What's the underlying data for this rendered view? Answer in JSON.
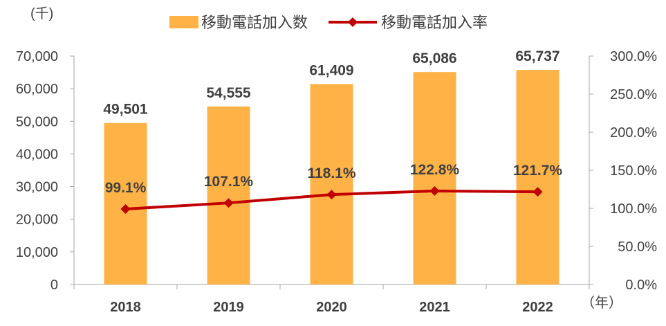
{
  "chart_data": {
    "type": "bar",
    "categories": [
      "2018",
      "2019",
      "2020",
      "2021",
      "2022"
    ],
    "series": [
      {
        "name": "移動電話加入数",
        "type": "bar",
        "axis": "left",
        "values": [
          49501,
          54555,
          61409,
          65086,
          65737
        ],
        "labels": [
          "49,501",
          "54,555",
          "61,409",
          "65,086",
          "65,737"
        ],
        "color": "#FFB347"
      },
      {
        "name": "移動電話加入率",
        "type": "line",
        "axis": "right",
        "marker": "diamond",
        "values": [
          99.1,
          107.1,
          118.1,
          122.8,
          121.7
        ],
        "labels": [
          "99.1%",
          "107.1%",
          "118.1%",
          "122.8%",
          "121.7%"
        ],
        "color": "#C00000"
      }
    ],
    "y_left": {
      "unit_label": "(千)",
      "ylim": [
        0,
        70000
      ],
      "ticks": [
        0,
        10000,
        20000,
        30000,
        40000,
        50000,
        60000,
        70000
      ],
      "tick_labels": [
        "0",
        "10,000",
        "20,000",
        "30,000",
        "40,000",
        "50,000",
        "60,000",
        "70,000"
      ]
    },
    "y_right": {
      "ylim": [
        0,
        300
      ],
      "ticks": [
        0,
        50,
        100,
        150,
        200,
        250,
        300
      ],
      "tick_labels": [
        "0.0%",
        "50.0%",
        "100.0%",
        "150.0%",
        "200.0%",
        "250.0%",
        "300.0%"
      ]
    },
    "x_unit_label": "（年）",
    "legend_position": "top-center",
    "grid": false,
    "axis_color": "#A6A6A6"
  }
}
